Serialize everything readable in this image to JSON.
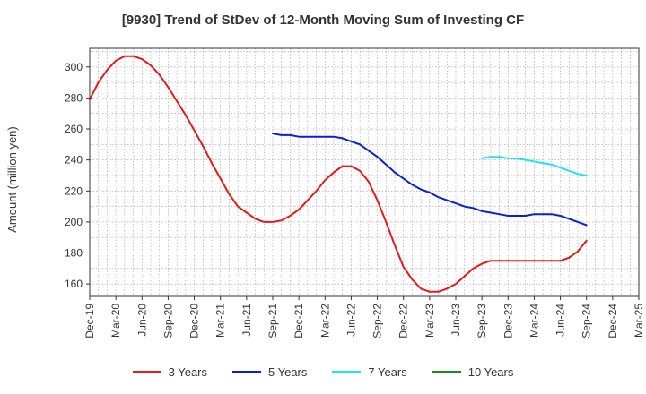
{
  "chart_data": {
    "type": "line",
    "title": "[9930]  Trend of StDev of 12-Month Moving Sum of Investing CF",
    "ylabel": "Amount (million yen)",
    "xlabel": "",
    "ylim": [
      152,
      312
    ],
    "yticks": [
      160,
      180,
      200,
      220,
      240,
      260,
      280,
      300
    ],
    "categories": [
      "Dec-19",
      "Mar-20",
      "Jun-20",
      "Sep-20",
      "Dec-20",
      "Mar-21",
      "Jun-21",
      "Sep-21",
      "Dec-21",
      "Mar-22",
      "Jun-22",
      "Sep-22",
      "Dec-22",
      "Mar-23",
      "Jun-23",
      "Sep-23",
      "Dec-23",
      "Mar-24",
      "Jun-24",
      "Sep-24",
      "Dec-24",
      "Mar-25"
    ],
    "grid": true,
    "legend_position": "bottom",
    "series": [
      {
        "name": "3 Years",
        "color": "#e31a1c",
        "x": [
          "Dec-19",
          "Jan-20",
          "Feb-20",
          "Mar-20",
          "Apr-20",
          "May-20",
          "Jun-20",
          "Jul-20",
          "Aug-20",
          "Sep-20",
          "Oct-20",
          "Nov-20",
          "Dec-20",
          "Jan-21",
          "Feb-21",
          "Mar-21",
          "Apr-21",
          "May-21",
          "Jun-21",
          "Jul-21",
          "Aug-21",
          "Sep-21",
          "Oct-21",
          "Nov-21",
          "Dec-21",
          "Jan-22",
          "Feb-22",
          "Mar-22",
          "Apr-22",
          "May-22",
          "Jun-22",
          "Jul-22",
          "Aug-22",
          "Sep-22",
          "Oct-22",
          "Nov-22",
          "Dec-22",
          "Jan-23",
          "Feb-23",
          "Mar-23",
          "Apr-23",
          "May-23",
          "Jun-23",
          "Jul-23",
          "Aug-23",
          "Sep-23",
          "Oct-23",
          "Nov-23",
          "Dec-23",
          "Jan-24",
          "Feb-24",
          "Mar-24",
          "Apr-24",
          "May-24",
          "Jun-24",
          "Jul-24",
          "Aug-24",
          "Sep-24"
        ],
        "values": [
          279,
          290,
          298,
          304,
          307,
          307,
          305,
          301,
          295,
          287,
          278,
          269,
          259,
          249,
          238,
          228,
          218,
          210,
          206,
          202,
          200,
          200,
          201,
          204,
          208,
          214,
          220,
          227,
          232,
          236,
          236,
          233,
          226,
          214,
          200,
          185,
          171,
          163,
          157,
          155,
          155,
          157,
          160,
          165,
          170,
          173,
          175,
          175,
          175,
          175,
          175,
          175,
          175,
          175,
          175,
          177,
          181,
          188
        ]
      },
      {
        "name": "5 Years",
        "color": "#0a1fd1",
        "x": [
          "Sep-21",
          "Oct-21",
          "Nov-21",
          "Dec-21",
          "Jan-22",
          "Feb-22",
          "Mar-22",
          "Apr-22",
          "May-22",
          "Jun-22",
          "Jul-22",
          "Aug-22",
          "Sep-22",
          "Oct-22",
          "Nov-22",
          "Dec-22",
          "Jan-23",
          "Feb-23",
          "Mar-23",
          "Apr-23",
          "May-23",
          "Jun-23",
          "Jul-23",
          "Aug-23",
          "Sep-23",
          "Oct-23",
          "Nov-23",
          "Dec-23",
          "Jan-24",
          "Feb-24",
          "Mar-24",
          "Apr-24",
          "May-24",
          "Jun-24",
          "Jul-24",
          "Aug-24",
          "Sep-24"
        ],
        "values": [
          257,
          256,
          256,
          255,
          255,
          255,
          255,
          255,
          254,
          252,
          250,
          246,
          242,
          237,
          232,
          228,
          224,
          221,
          219,
          216,
          214,
          212,
          210,
          209,
          207,
          206,
          205,
          204,
          204,
          204,
          205,
          205,
          205,
          204,
          202,
          200,
          198
        ]
      },
      {
        "name": "7 Years",
        "color": "#22e1f0",
        "x": [
          "Sep-23",
          "Oct-23",
          "Nov-23",
          "Dec-23",
          "Jan-24",
          "Feb-24",
          "Mar-24",
          "Apr-24",
          "May-24",
          "Jun-24",
          "Jul-24",
          "Aug-24",
          "Sep-24"
        ],
        "values": [
          241,
          242,
          242,
          241,
          241,
          240,
          239,
          238,
          237,
          235,
          233,
          231,
          230
        ]
      },
      {
        "name": "10 Years",
        "color": "#1b8c1b",
        "x": [],
        "values": []
      }
    ]
  },
  "colors": {
    "grid": "#a0a0a0",
    "axis": "#333333"
  }
}
